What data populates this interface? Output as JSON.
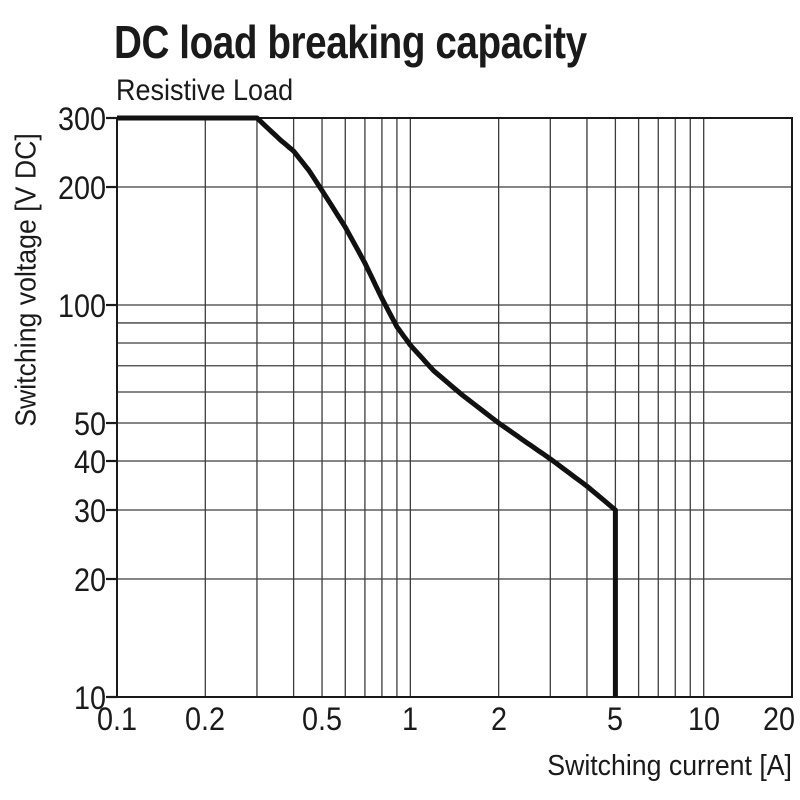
{
  "header": {
    "title": "DC load breaking capacity",
    "subtitle": "Resistive Load"
  },
  "colors": {
    "background": "#ffffff",
    "text": "#1a1a1a",
    "grid": "#3d3d3d",
    "frame": "#1a1a1a",
    "curve": "#111111"
  },
  "chart_data": {
    "type": "line",
    "title": "DC load breaking capacity",
    "subtitle": "Resistive Load",
    "xlabel": "Switching current [A]",
    "ylabel": "Switching voltage [V DC]",
    "x_scale": "log",
    "y_scale": "log",
    "xlim": [
      0.1,
      20
    ],
    "ylim": [
      10,
      300
    ],
    "grid": true,
    "legend": false,
    "x_ticks_labeled": [
      0.1,
      0.2,
      0.5,
      1,
      2,
      5,
      10,
      20
    ],
    "x_tick_labels": [
      "0.1",
      "0.2",
      "0.5",
      "1",
      "2",
      "5",
      "10",
      "20"
    ],
    "y_ticks_labeled": [
      10,
      20,
      30,
      40,
      50,
      100,
      200,
      300
    ],
    "y_tick_labels": [
      "10",
      "20",
      "30",
      "40",
      "50",
      "100",
      "200",
      "300"
    ],
    "x_gridlines": [
      0.2,
      0.3,
      0.4,
      0.5,
      0.6,
      0.7,
      0.8,
      0.9,
      1,
      2,
      3,
      4,
      5,
      6,
      7,
      8,
      9,
      10
    ],
    "y_gridlines": [
      20,
      30,
      40,
      50,
      60,
      70,
      80,
      90,
      100,
      200
    ],
    "series": [
      {
        "name": "Resistive Load",
        "color": "#111111",
        "points": [
          [
            0.1,
            300
          ],
          [
            0.3,
            300
          ],
          [
            0.36,
            264
          ],
          [
            0.4,
            247
          ],
          [
            0.45,
            221
          ],
          [
            0.5,
            196
          ],
          [
            0.6,
            158
          ],
          [
            0.7,
            128
          ],
          [
            0.8,
            104
          ],
          [
            0.9,
            88
          ],
          [
            1,
            79
          ],
          [
            1.2,
            68
          ],
          [
            1.5,
            59
          ],
          [
            2,
            50
          ],
          [
            2.5,
            44.5
          ],
          [
            3,
            40.5
          ],
          [
            4,
            34.5
          ],
          [
            5,
            30
          ],
          [
            5,
            10
          ]
        ]
      }
    ]
  }
}
